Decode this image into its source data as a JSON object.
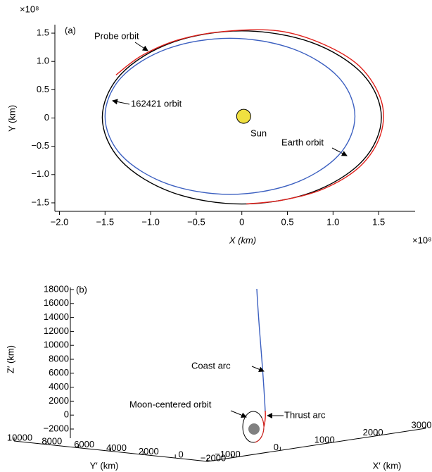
{
  "chart_data": [
    {
      "type": "line",
      "panel": "(a)",
      "x_label": "X (km)",
      "y_label": "Y (km)",
      "x_multiplier": "×10⁸",
      "y_multiplier": "×10⁸",
      "xlim": [
        -2.05,
        1.9
      ],
      "ylim": [
        -1.65,
        1.65
      ],
      "xticks": [
        {
          "value": -2,
          "label": "−2.0"
        },
        {
          "value": -1.5,
          "label": "−1.5"
        },
        {
          "value": -1,
          "label": "−1.0"
        },
        {
          "value": -0.5,
          "label": "−0.5"
        },
        0,
        0.5,
        {
          "value": 1,
          "label": "1.0"
        },
        1.5
      ],
      "yticks": [
        {
          "value": -1.5,
          "label": "−1.5"
        },
        {
          "value": -1,
          "label": "−1.0"
        },
        {
          "value": -0.5,
          "label": "−0.5"
        },
        0,
        0.5,
        {
          "value": 1,
          "label": "1.0"
        },
        1.5
      ],
      "series": [
        {
          "name": "Earth orbit",
          "color": "#000000",
          "x": [
            1.53,
            1.325,
            0.765,
            0,
            -0.765,
            -1.325,
            -1.53,
            -1.325,
            -0.765,
            0,
            0.765,
            1.325,
            1.53
          ],
          "y": [
            0.01,
            0.775,
            1.335,
            1.54,
            1.335,
            0.775,
            0.01,
            -0.755,
            -1.315,
            -1.52,
            -1.315,
            -0.755,
            0.01
          ]
        },
        {
          "name": "162421 orbit",
          "color": "#3b5fc0",
          "x": [
            1.24,
            1.06,
            0.555,
            -0.13,
            -0.815,
            -1.32,
            -1.5,
            -1.32,
            -0.815,
            -0.13,
            0.555,
            1.06,
            1.24
          ],
          "y": [
            0.03,
            0.72,
            1.225,
            1.41,
            1.225,
            0.72,
            0.03,
            -0.66,
            -1.165,
            -1.35,
            -1.165,
            -0.66,
            0.03
          ]
        },
        {
          "name": "Probe orbit",
          "color": "#e0201b",
          "x": [
            -1.38,
            -1.1,
            -0.7,
            -0.2,
            0.4,
            0.9,
            1.3,
            1.53,
            1.52,
            1.3,
            0.9,
            0.45,
            0.05
          ],
          "y": [
            0.76,
            1.1,
            1.38,
            1.53,
            1.54,
            1.3,
            0.9,
            0.3,
            -0.3,
            -0.85,
            -1.25,
            -1.45,
            -1.52
          ]
        }
      ],
      "sun": {
        "name": "Sun",
        "x": 0.02,
        "y": 0.03,
        "color": "#f0e040"
      }
    },
    {
      "type": "line3d",
      "panel": "(b)",
      "x_label": "X′ (km)",
      "y_label": "Y′ (km)",
      "z_label": "Z′ (km)",
      "xlim": [
        -1500,
        3000
      ],
      "ylim": [
        -2000,
        10000
      ],
      "zlim": [
        -2000,
        18000
      ],
      "xticks": [
        {
          "value": -1000,
          "label": "−1000"
        },
        0,
        1000,
        2000,
        3000
      ],
      "yticks": [
        10000,
        8000,
        6000,
        4000,
        2000,
        0,
        {
          "value": -2000,
          "label": "−2000"
        }
      ],
      "zticks": [
        {
          "value": -2000,
          "label": "−2000"
        },
        0,
        2000,
        4000,
        6000,
        8000,
        10000,
        12000,
        14000,
        16000,
        18000
      ],
      "annotations": [
        "Coast arc",
        "Thrust arc",
        "Moon-centered orbit"
      ]
    }
  ]
}
